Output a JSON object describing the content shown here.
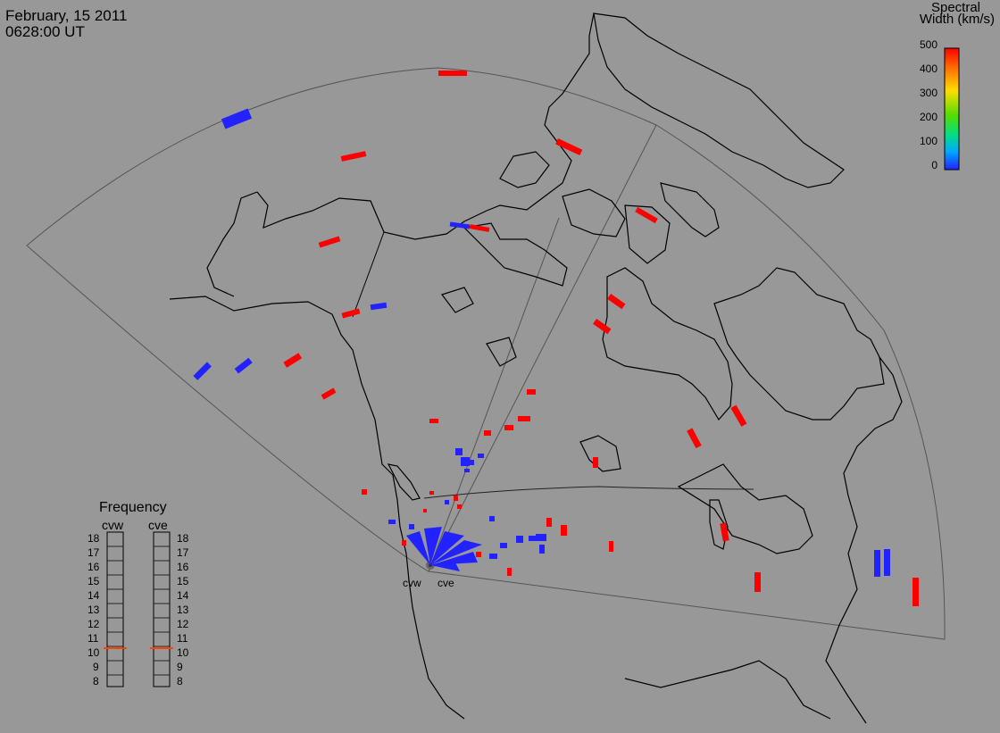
{
  "header": {
    "date": "February, 15 2011",
    "time": "0628:00 UT"
  },
  "colorbar": {
    "title_line1": "Spectral",
    "title_line2": "Width (km/s)",
    "ticks": [
      "500",
      "400",
      "300",
      "200",
      "100",
      "0"
    ],
    "colors": [
      "#ff0000",
      "#ff7700",
      "#ffdd00",
      "#88dd00",
      "#00dd66",
      "#00cccc",
      "#0088ff",
      "#2222ff"
    ]
  },
  "frequency": {
    "title": "Frequency",
    "radars": [
      "cvw",
      "cve"
    ],
    "levels": [
      "18",
      "17",
      "16",
      "15",
      "14",
      "13",
      "12",
      "11",
      "10",
      "9",
      "8"
    ],
    "marker_color": "#ff4400",
    "selected_mhz": 10.8
  },
  "radars": {
    "west": "cvw",
    "east": "cve"
  },
  "colors": {
    "background": "#989898",
    "coast": "#000000",
    "fov": "#444444",
    "high": "#ff0000",
    "low": "#2222ff"
  }
}
